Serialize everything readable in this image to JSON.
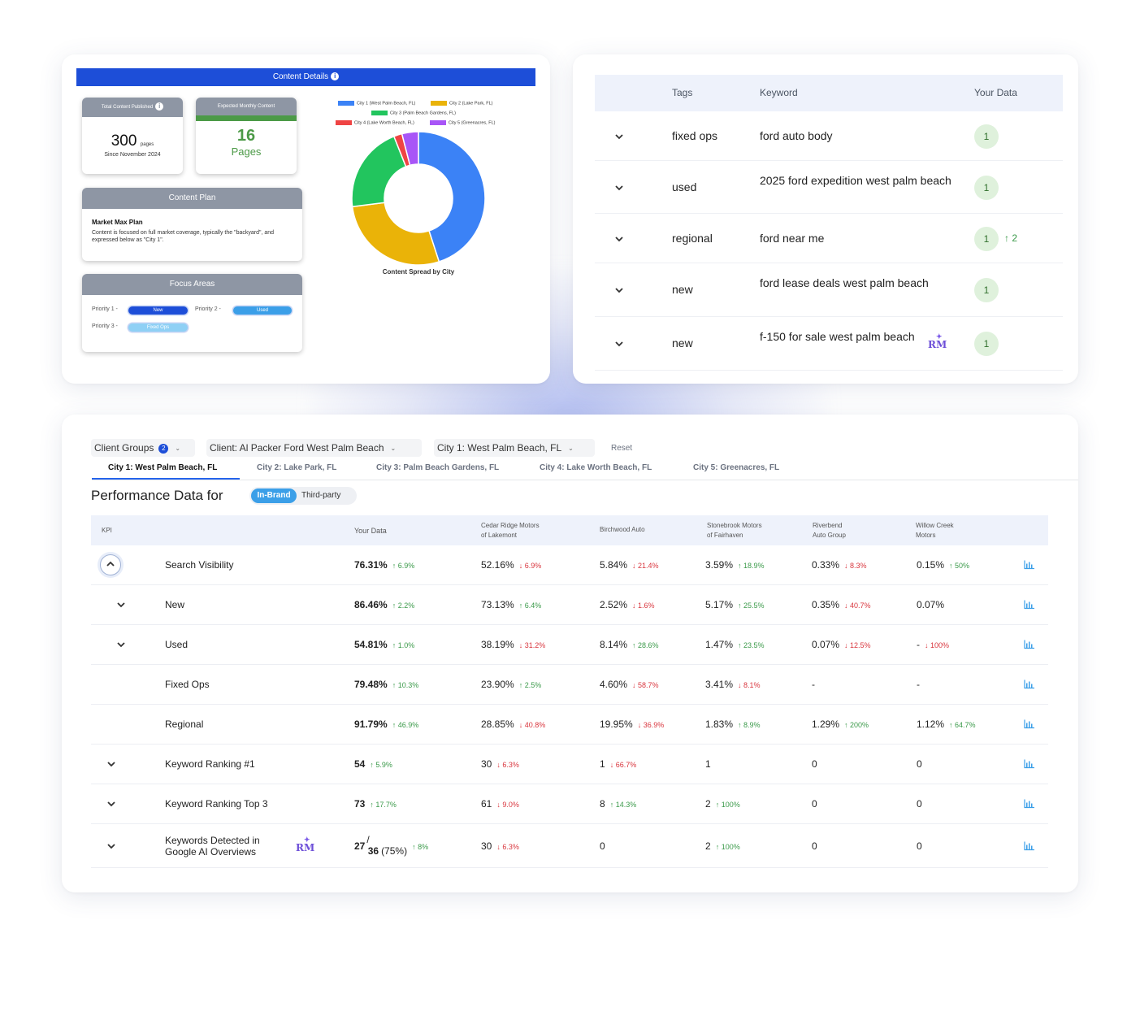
{
  "content_details": {
    "header": "Content Details",
    "total": {
      "label": "Total Content Published",
      "value": "300",
      "unit": "pages",
      "since": "Since November 2024"
    },
    "expected": {
      "label": "Expected Monthly Content",
      "value": "16",
      "unit": "Pages"
    },
    "plan": {
      "header": "Content Plan",
      "title": "Market Max Plan",
      "text": "Content is focused on full market coverage, typically the \"backyard\", and expressed below as \"City 1\"."
    },
    "focus": {
      "header": "Focus Areas",
      "p1_label": "Priority 1 -",
      "p1_value": "New",
      "p1_color": "#1d4ed8",
      "p2_label": "Priority 2 -",
      "p2_value": "Used",
      "p2_color": "#3b9fe8",
      "p3_label": "Priority 3 -",
      "p3_value": "Fixed Ops",
      "p3_color": "#8fd0f5"
    },
    "chart_data": {
      "type": "pie",
      "title": "Content Spread by City",
      "series": [
        {
          "name": "City 1 (West Palm Beach, FL)",
          "value": 45,
          "color": "#3b82f6"
        },
        {
          "name": "City 2 (Lake Park, FL)",
          "value": 28,
          "color": "#eab308"
        },
        {
          "name": "City 3 (Palm Beach Gardens, FL)",
          "value": 21,
          "color": "#22c55e"
        },
        {
          "name": "City 4 (Lake Worth Beach, FL)",
          "value": 2,
          "color": "#ef4444"
        },
        {
          "name": "City 5 (Greenacres, FL)",
          "value": 4,
          "color": "#a855f7"
        }
      ],
      "legend": "top"
    }
  },
  "keywords": {
    "headers": {
      "tags": "Tags",
      "keyword": "Keyword",
      "data": "Your Data"
    },
    "rows": [
      {
        "tag": "fixed ops",
        "keyword": "ford auto body",
        "value": "1",
        "change": ""
      },
      {
        "tag": "used",
        "keyword": "2025 ford expedition west palm beach",
        "value": "1",
        "change": ""
      },
      {
        "tag": "regional",
        "keyword": "ford near me",
        "value": "1",
        "change": "↑ 2"
      },
      {
        "tag": "new",
        "keyword": "ford lease deals west palm beach",
        "value": "1",
        "change": ""
      },
      {
        "tag": "new",
        "keyword": "f-150 for sale west palm beach",
        "value": "1",
        "change": ""
      }
    ],
    "ai_icon_text": "RM"
  },
  "perf": {
    "filters": {
      "groups": "Client Groups",
      "groups_count": "2",
      "client": "Client: Al Packer Ford West Palm Beach",
      "city": "City 1: West Palm Beach, FL",
      "reset": "Reset"
    },
    "tabs": [
      "City 1: West Palm Beach, FL",
      "City 2: Lake Park, FL",
      "City 3: Palm Beach Gardens, FL",
      "City 4: Lake Worth Beach, FL",
      "City 5: Greenacres, FL"
    ],
    "title": "Performance Data for",
    "toggle_on": "In-Brand",
    "toggle_off": "Third-party",
    "headers": {
      "kpi": "KPI",
      "your": "Your Data",
      "c1a": "Cedar Ridge Motors",
      "c1b": "of Lakemont",
      "c2": "Birchwood Auto",
      "c3a": "Stonebrook Motors",
      "c3b": "of Fairhaven",
      "c4a": "Riverbend",
      "c4b": "Auto Group",
      "c5a": "Willow Creek",
      "c5b": "Motors"
    },
    "rows": [
      {
        "kpi": "Search Visibility",
        "your": "76.31%",
        "your_chg": "↑ 6.9%",
        "c1": "52.16%",
        "c1_chg": "↓ 6.9%",
        "c2": "5.84%",
        "c2_chg": "↓ 21.4%",
        "c3": "3.59%",
        "c3_chg": "↑ 18.9%",
        "c4": "0.33%",
        "c4_chg": "↓ 8.3%",
        "c5": "0.15%",
        "c5_chg": "↑ 50%"
      },
      {
        "kpi": "New",
        "your": "86.46%",
        "your_chg": "↑ 2.2%",
        "c1": "73.13%",
        "c1_chg": "↑ 6.4%",
        "c2": "2.52%",
        "c2_chg": "↓ 1.6%",
        "c3": "5.17%",
        "c3_chg": "↑ 25.5%",
        "c4": "0.35%",
        "c4_chg": "↓ 40.7%",
        "c5": "0.07%",
        "c5_chg": ""
      },
      {
        "kpi": "Used",
        "your": "54.81%",
        "your_chg": "↑ 1.0%",
        "c1": "38.19%",
        "c1_chg": "↓ 31.2%",
        "c2": "8.14%",
        "c2_chg": "↑ 28.6%",
        "c3": "1.47%",
        "c3_chg": "↑ 23.5%",
        "c4": "0.07%",
        "c4_chg": "↓ 12.5%",
        "c5": "-",
        "c5_chg": "↓ 100%"
      },
      {
        "kpi": "Fixed Ops",
        "your": "79.48%",
        "your_chg": "↑ 10.3%",
        "c1": "23.90%",
        "c1_chg": "↑ 2.5%",
        "c2": "4.60%",
        "c2_chg": "↓ 58.7%",
        "c3": "3.41%",
        "c3_chg": "↓ 8.1%",
        "c4": "-",
        "c4_chg": "",
        "c5": "-",
        "c5_chg": ""
      },
      {
        "kpi": "Regional",
        "your": "91.79%",
        "your_chg": "↑ 46.9%",
        "c1": "28.85%",
        "c1_chg": "↓ 40.8%",
        "c2": "19.95%",
        "c2_chg": "↓ 36.9%",
        "c3": "1.83%",
        "c3_chg": "↑ 8.9%",
        "c4": "1.29%",
        "c4_chg": "↑ 200%",
        "c5": "1.12%",
        "c5_chg": "↑ 64.7%"
      },
      {
        "kpi": "Keyword Ranking #1",
        "your": "54",
        "your_chg": "↑ 5.9%",
        "c1": "30",
        "c1_chg": "↓ 6.3%",
        "c2": "1",
        "c2_chg": "↓ 66.7%",
        "c3": "1",
        "c3_chg": "",
        "c4": "0",
        "c4_chg": "",
        "c5": "0",
        "c5_chg": ""
      },
      {
        "kpi": "Keyword Ranking Top 3",
        "your": "73",
        "your_chg": "↑ 17.7%",
        "c1": "61",
        "c1_chg": "↓ 9.0%",
        "c2": "8",
        "c2_chg": "↑ 14.3%",
        "c3": "2",
        "c3_chg": "↑ 100%",
        "c4": "0",
        "c4_chg": "",
        "c5": "0",
        "c5_chg": ""
      },
      {
        "kpi_l1": "Keywords Detected in",
        "kpi_l2": "Google AI Overviews",
        "your_a": "27",
        "your_sep": "/",
        "your_b": "36",
        "your_pct": "(75%)",
        "your_chg": "↑ 8%",
        "c1": "30",
        "c1_chg": "↓ 6.3%",
        "c2": "0",
        "c2_chg": "",
        "c3": "2",
        "c3_chg": "↑ 100%",
        "c4": "0",
        "c4_chg": "",
        "c5": "0",
        "c5_chg": ""
      }
    ]
  },
  "colors": {
    "brand_blue": "#1d4ed8",
    "up": "#3b9a4a",
    "down": "#d9363e",
    "header_bg": "#eef2fb"
  }
}
